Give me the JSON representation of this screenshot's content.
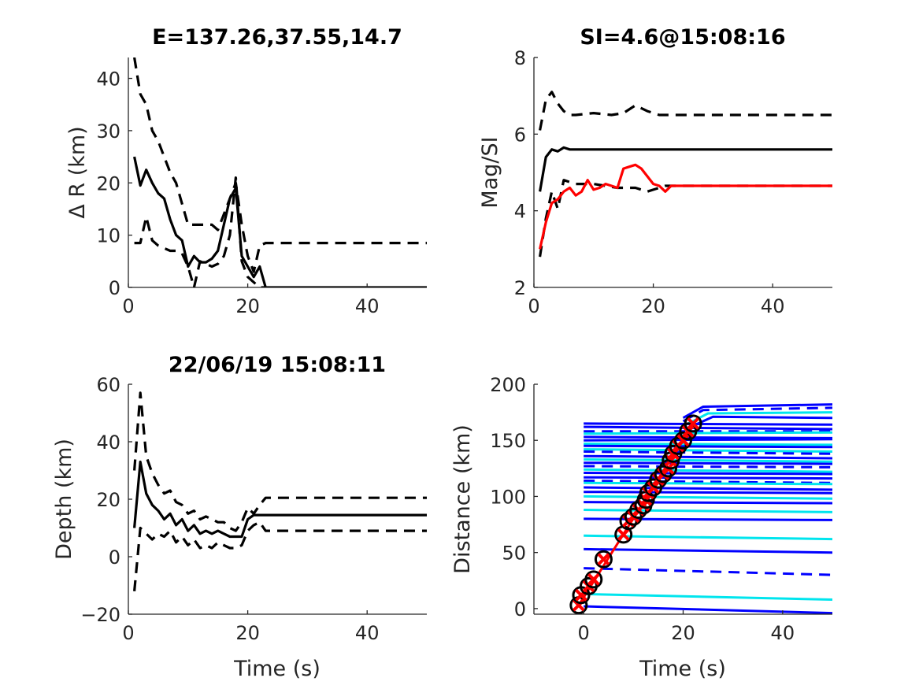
{
  "chart_data": [
    {
      "type": "line",
      "title": "E=137.26,37.55,14.7",
      "xlabel": "",
      "ylabel": "Δ R (km)",
      "xlim": [
        0,
        50
      ],
      "ylim": [
        0,
        44
      ],
      "xticks": [
        "0",
        "20",
        "40"
      ],
      "yticks": [
        "0",
        "10",
        "20",
        "30",
        "40"
      ],
      "grid": false,
      "series": [
        {
          "style": "solid",
          "color": "#000000",
          "x": [
            1,
            2,
            3,
            4,
            5,
            6,
            7,
            8,
            9,
            10,
            11,
            12,
            13,
            14,
            15,
            16,
            17,
            18,
            19,
            20,
            21,
            22,
            23,
            24,
            30,
            40,
            50
          ],
          "y": [
            25,
            19.5,
            22.5,
            20,
            18,
            17,
            13,
            10,
            9,
            4,
            6,
            4.8,
            4.8,
            5.5,
            7,
            12,
            17,
            19,
            6,
            4,
            2,
            4,
            0,
            0,
            0,
            0,
            0
          ]
        },
        {
          "style": "dashed",
          "color": "#000000",
          "x": [
            1,
            2,
            3,
            4,
            5,
            6,
            7,
            8,
            9,
            10,
            11,
            12,
            13,
            14,
            15,
            16,
            17,
            18,
            19,
            20,
            21,
            22,
            23,
            24,
            30,
            40,
            50
          ],
          "y": [
            44,
            37,
            35,
            30,
            28,
            25,
            22,
            20,
            16,
            12,
            12,
            12,
            12,
            12,
            11,
            14,
            17,
            20,
            12,
            6,
            3,
            8,
            8.5,
            8.5,
            8.5,
            8.5,
            8.5
          ]
        },
        {
          "style": "dashed",
          "color": "#000000",
          "x": [
            1,
            2,
            3,
            4,
            5,
            6,
            7,
            8,
            9,
            10,
            11,
            12,
            13,
            14,
            15,
            16,
            17,
            18,
            19,
            20,
            21,
            22,
            23
          ],
          "y": [
            8.5,
            8.5,
            13.5,
            9,
            8,
            7.5,
            7,
            7,
            6.5,
            4,
            0,
            5,
            4.5,
            4,
            4.5,
            6,
            10,
            21,
            5,
            2,
            1,
            0,
            0
          ]
        }
      ]
    },
    {
      "type": "line",
      "title": "SI=4.6@15:08:16",
      "xlabel": "",
      "ylabel": "Mag/SI",
      "xlim": [
        0,
        50
      ],
      "ylim": [
        2,
        8
      ],
      "xticks": [
        "0",
        "20",
        "40"
      ],
      "yticks": [
        "2",
        "4",
        "6",
        "8"
      ],
      "grid": false,
      "series": [
        {
          "style": "solid",
          "color": "#000000",
          "x": [
            1,
            2,
            3,
            4,
            5,
            6,
            7,
            10,
            20,
            30,
            40,
            50
          ],
          "y": [
            4.5,
            5.4,
            5.6,
            5.55,
            5.65,
            5.6,
            5.6,
            5.6,
            5.6,
            5.6,
            5.6,
            5.6
          ]
        },
        {
          "style": "dashed",
          "color": "#000000",
          "x": [
            1,
            2,
            3,
            4,
            5,
            6,
            7,
            10,
            13,
            15,
            17,
            19,
            21,
            23,
            30,
            40,
            50
          ],
          "y": [
            6.1,
            6.9,
            7.1,
            6.8,
            6.6,
            6.5,
            6.5,
            6.55,
            6.5,
            6.55,
            6.75,
            6.6,
            6.5,
            6.5,
            6.5,
            6.5,
            6.5
          ]
        },
        {
          "style": "dashed",
          "color": "#000000",
          "x": [
            1,
            2,
            3,
            4,
            5,
            6,
            7,
            10,
            14,
            17,
            19,
            20,
            21,
            22,
            23,
            30,
            40,
            50
          ],
          "y": [
            2.8,
            3.8,
            4.5,
            4.05,
            4.8,
            4.75,
            4.7,
            4.7,
            4.6,
            4.6,
            4.5,
            4.55,
            4.6,
            4.65,
            4.65,
            4.65,
            4.65,
            4.65
          ]
        },
        {
          "style": "solid",
          "color": "#ff0000",
          "x": [
            1,
            2,
            3,
            4,
            5,
            6,
            7,
            8,
            9,
            10,
            11,
            12,
            13,
            14,
            15,
            16,
            17,
            18,
            19,
            20,
            21,
            22,
            23,
            24,
            30,
            40,
            50
          ],
          "y": [
            3,
            3.7,
            4.2,
            4.3,
            4.5,
            4.6,
            4.4,
            4.5,
            4.8,
            4.55,
            4.6,
            4.7,
            4.65,
            4.6,
            5.1,
            5.15,
            5.2,
            5.1,
            4.9,
            4.7,
            4.65,
            4.5,
            4.65,
            4.65,
            4.65,
            4.65,
            4.65
          ]
        }
      ]
    },
    {
      "type": "line",
      "title": "22/06/19 15:08:11",
      "xlabel": "Time (s)",
      "ylabel": "Depth (km)",
      "xlim": [
        0,
        50
      ],
      "ylim": [
        -20,
        60
      ],
      "xticks": [
        "0",
        "20",
        "40"
      ],
      "yticks": [
        "-20",
        "0",
        "20",
        "40",
        "60"
      ],
      "grid": false,
      "series": [
        {
          "style": "solid",
          "color": "#000000",
          "x": [
            1,
            2,
            3,
            4,
            5,
            6,
            7,
            8,
            9,
            10,
            11,
            12,
            13,
            14,
            15,
            16,
            17,
            18,
            19,
            20,
            21,
            22,
            23,
            24,
            30,
            40,
            50
          ],
          "y": [
            10,
            33,
            22,
            18,
            16,
            13,
            15,
            11,
            13,
            9,
            11,
            8,
            9,
            8,
            9,
            8,
            7,
            7,
            7,
            13,
            14.5,
            14.5,
            14.5,
            14.5,
            14.5,
            14.5,
            14.5
          ]
        },
        {
          "style": "dashed",
          "color": "#000000",
          "x": [
            1,
            2,
            3,
            4,
            5,
            6,
            7,
            8,
            9,
            10,
            11,
            12,
            13,
            14,
            15,
            16,
            17,
            18,
            19,
            20,
            21,
            22,
            23,
            24,
            30,
            40,
            50
          ],
          "y": [
            30,
            57,
            35,
            29,
            25,
            22,
            23,
            19,
            18,
            15,
            16,
            13,
            14,
            13,
            12,
            12,
            10,
            9,
            12,
            17,
            15,
            18,
            20.5,
            20.5,
            20.5,
            20.5,
            20.5
          ]
        },
        {
          "style": "dashed",
          "color": "#000000",
          "x": [
            1,
            2,
            3,
            4,
            5,
            6,
            7,
            8,
            9,
            10,
            11,
            12,
            13,
            14,
            15,
            16,
            17,
            18,
            19,
            20,
            21,
            22,
            23,
            24,
            30,
            40,
            50
          ],
          "y": [
            -12,
            10,
            8,
            6,
            8,
            7,
            9,
            5,
            7,
            4,
            6,
            3,
            4,
            3,
            5,
            4,
            3,
            3,
            4,
            9,
            11,
            12,
            9,
            9,
            9,
            9,
            9
          ]
        }
      ]
    },
    {
      "type": "line",
      "title": "",
      "xlabel": "Time (s)",
      "ylabel": "Distance (km)",
      "xlim": [
        -10,
        50
      ],
      "ylim": [
        -5,
        200
      ],
      "xticks": [
        "0",
        "20",
        "40"
      ],
      "yticks": [
        "0",
        "50",
        "100",
        "150",
        "200"
      ],
      "grid": false,
      "station_traces": [
        {
          "color": "#0000ff",
          "style": "solid",
          "y": [
            165,
            164
          ]
        },
        {
          "color": "#0000ff",
          "style": "solid",
          "y": [
            162,
            160
          ]
        },
        {
          "color": "#0000ff",
          "style": "dashed",
          "y": [
            158,
            158
          ]
        },
        {
          "color": "#00e5ee",
          "style": "solid",
          "y": [
            156,
            157
          ]
        },
        {
          "color": "#0000ff",
          "style": "solid",
          "y": [
            153,
            152
          ]
        },
        {
          "color": "#0000ff",
          "style": "solid",
          "y": [
            150,
            151
          ]
        },
        {
          "color": "#00e5ee",
          "style": "solid",
          "y": [
            147,
            146
          ]
        },
        {
          "color": "#0000ff",
          "style": "solid",
          "y": [
            145,
            144
          ]
        },
        {
          "color": "#00e5ee",
          "style": "solid",
          "y": [
            142,
            140
          ]
        },
        {
          "color": "#0000ff",
          "style": "dashed",
          "y": [
            140,
            138
          ]
        },
        {
          "color": "#0000ff",
          "style": "solid",
          "y": [
            136,
            134
          ]
        },
        {
          "color": "#00e5ee",
          "style": "solid",
          "y": [
            133,
            131
          ]
        },
        {
          "color": "#0000ff",
          "style": "solid",
          "y": [
            130,
            129
          ]
        },
        {
          "color": "#0000ff",
          "style": "dashed",
          "y": [
            127,
            126
          ]
        },
        {
          "color": "#00e5ee",
          "style": "solid",
          "y": [
            124,
            122
          ]
        },
        {
          "color": "#0000ff",
          "style": "solid",
          "y": [
            121,
            120
          ]
        },
        {
          "color": "#0000ff",
          "style": "solid",
          "y": [
            117,
            116
          ]
        },
        {
          "color": "#0000ff",
          "style": "dashed",
          "y": [
            114,
            112
          ]
        },
        {
          "color": "#00e5ee",
          "style": "solid",
          "y": [
            112,
            111
          ]
        },
        {
          "color": "#0000ff",
          "style": "solid",
          "y": [
            108,
            106
          ]
        },
        {
          "color": "#0000ff",
          "style": "solid",
          "y": [
            104,
            103
          ]
        },
        {
          "color": "#00e5ee",
          "style": "solid",
          "y": [
            100,
            98
          ]
        },
        {
          "color": "#0000ff",
          "style": "solid",
          "y": [
            95,
            94
          ]
        },
        {
          "color": "#00e5ee",
          "style": "solid",
          "y": [
            88,
            86
          ]
        },
        {
          "color": "#0000ff",
          "style": "solid",
          "y": [
            80,
            79
          ]
        },
        {
          "color": "#00e5ee",
          "style": "solid",
          "y": [
            65,
            62
          ]
        },
        {
          "color": "#0000ff",
          "style": "solid",
          "y": [
            53,
            50
          ]
        },
        {
          "color": "#0000ff",
          "style": "dashed",
          "y": [
            36,
            30
          ]
        },
        {
          "color": "#00e5ee",
          "style": "solid",
          "y": [
            13,
            8
          ]
        },
        {
          "color": "#0000ff",
          "style": "solid",
          "y": [
            2,
            -4
          ]
        }
      ],
      "trace_x": [
        0,
        50
      ],
      "upper_traces": [
        {
          "color": "#0000ff",
          "style": "solid",
          "x": [
            20,
            24,
            50
          ],
          "y": [
            170,
            180,
            182
          ]
        },
        {
          "color": "#0000ff",
          "style": "dashed",
          "x": [
            20,
            24,
            50
          ],
          "y": [
            167,
            177,
            179
          ]
        },
        {
          "color": "#00e5ee",
          "style": "solid",
          "x": [
            21,
            25,
            50
          ],
          "y": [
            165,
            174,
            175
          ]
        },
        {
          "color": "#0000ff",
          "style": "solid",
          "x": [
            22,
            26,
            50
          ],
          "y": [
            163,
            171,
            170
          ]
        }
      ],
      "picks_x": [
        -1,
        -0.5,
        1,
        2,
        4,
        8,
        9,
        10,
        11,
        12,
        12.5,
        13,
        14,
        15,
        16,
        17,
        17.5,
        18,
        19,
        20,
        21,
        22
      ],
      "picks_y": [
        3,
        12,
        20,
        26,
        44,
        66,
        78,
        82,
        88,
        92,
        97,
        103,
        108,
        115,
        120,
        125,
        132,
        138,
        145,
        150,
        158,
        165
      ]
    }
  ]
}
